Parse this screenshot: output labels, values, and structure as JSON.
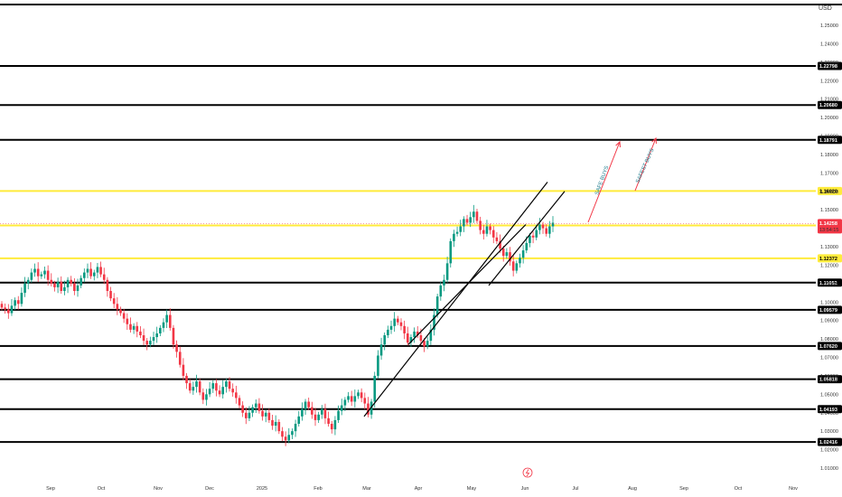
{
  "currency": "USD",
  "colors": {
    "up": "#089981",
    "down": "#f23645",
    "level_black": "#000000",
    "level_yellow": "#ffeb3b",
    "price_tag": "#f23645",
    "trendline": "#000000",
    "arrow": "#f23645",
    "annotation_text": "#1a7a8c"
  },
  "chart_data": {
    "type": "candlestick",
    "ylim": [
      1.008,
      1.265
    ],
    "yticks": [
      "1.25000",
      "1.24000",
      "1.23000",
      "1.22000",
      "1.21000",
      "1.20000",
      "1.19000",
      "1.18000",
      "1.17000",
      "1.16000",
      "1.15000",
      "1.14000",
      "1.13000",
      "1.12000",
      "1.11000",
      "1.10000",
      "1.09000",
      "1.08000",
      "1.07000",
      "1.06000",
      "1.05000",
      "1.04000",
      "1.03000",
      "1.02000",
      "1.01000"
    ],
    "xticks": [
      "Sep",
      "Oct",
      "Nov",
      "Dec",
      "2025",
      "Feb",
      "Mar",
      "Apr",
      "May",
      "Jun",
      "Jul",
      "Aug",
      "Sep",
      "Oct",
      "Nov"
    ],
    "horizontal_levels": [
      {
        "price": 1.2798,
        "label": "",
        "color": "black"
      },
      {
        "price": 1.22798,
        "label": "1.22798",
        "color": "black"
      },
      {
        "price": 1.2068,
        "label": "1.20680",
        "color": "black"
      },
      {
        "price": 1.18791,
        "label": "1.18791",
        "color": "black"
      },
      {
        "price": 1.1602,
        "label": "1.16020",
        "color": "yellow"
      },
      {
        "price": 1.14149,
        "label": "1.14149",
        "color": "yellow"
      },
      {
        "price": 1.12372,
        "label": "1.12372",
        "color": "yellow"
      },
      {
        "price": 1.11052,
        "label": "1.11052",
        "color": "black"
      },
      {
        "price": 1.09579,
        "label": "1.09579",
        "color": "black"
      },
      {
        "price": 1.0762,
        "label": "1.07620",
        "color": "black"
      },
      {
        "price": 1.05818,
        "label": "1.05818",
        "color": "black"
      },
      {
        "price": 1.04193,
        "label": "1.04193",
        "color": "black"
      },
      {
        "price": 1.02416,
        "label": "1.02416",
        "color": "black"
      }
    ],
    "current_price": {
      "price": 1.14258,
      "label": "1.14258",
      "countdown": "13:54:15"
    },
    "annotations": [
      "SAFE BUYS",
      "SAFEST BUYS"
    ],
    "candles_close": [
      1.097,
      1.096,
      1.094,
      1.098,
      1.101,
      1.099,
      1.105,
      1.11,
      1.112,
      1.116,
      1.118,
      1.114,
      1.115,
      1.117,
      1.112,
      1.11,
      1.108,
      1.111,
      1.106,
      1.108,
      1.112,
      1.11,
      1.106,
      1.109,
      1.113,
      1.116,
      1.118,
      1.114,
      1.116,
      1.119,
      1.115,
      1.112,
      1.106,
      1.102,
      1.099,
      1.096,
      1.094,
      1.091,
      1.088,
      1.085,
      1.087,
      1.084,
      1.082,
      1.079,
      1.077,
      1.079,
      1.081,
      1.083,
      1.086,
      1.089,
      1.093,
      1.086,
      1.077,
      1.073,
      1.066,
      1.06,
      1.056,
      1.052,
      1.054,
      1.057,
      1.051,
      1.047,
      1.05,
      1.053,
      1.056,
      1.052,
      1.05,
      1.054,
      1.057,
      1.053,
      1.051,
      1.048,
      1.044,
      1.04,
      1.037,
      1.04,
      1.043,
      1.045,
      1.041,
      1.038,
      1.04,
      1.036,
      1.033,
      1.035,
      1.03,
      1.027,
      1.025,
      1.028,
      1.03,
      1.034,
      1.038,
      1.042,
      1.046,
      1.043,
      1.039,
      1.036,
      1.039,
      1.042,
      1.037,
      1.034,
      1.031,
      1.036,
      1.041,
      1.044,
      1.047,
      1.049,
      1.046,
      1.049,
      1.051,
      1.048,
      1.045,
      1.039,
      1.046,
      1.06,
      1.071,
      1.077,
      1.082,
      1.085,
      1.087,
      1.091,
      1.089,
      1.087,
      1.083,
      1.078,
      1.081,
      1.084,
      1.082,
      1.079,
      1.076,
      1.079,
      1.085,
      1.093,
      1.103,
      1.109,
      1.112,
      1.121,
      1.133,
      1.137,
      1.138,
      1.141,
      1.145,
      1.143,
      1.146,
      1.149,
      1.144,
      1.139,
      1.137,
      1.141,
      1.139,
      1.135,
      1.133,
      1.129,
      1.125,
      1.127,
      1.122,
      1.117,
      1.121,
      1.124,
      1.128,
      1.132,
      1.136,
      1.135,
      1.139,
      1.142,
      1.14,
      1.137,
      1.141,
      1.143
    ]
  }
}
